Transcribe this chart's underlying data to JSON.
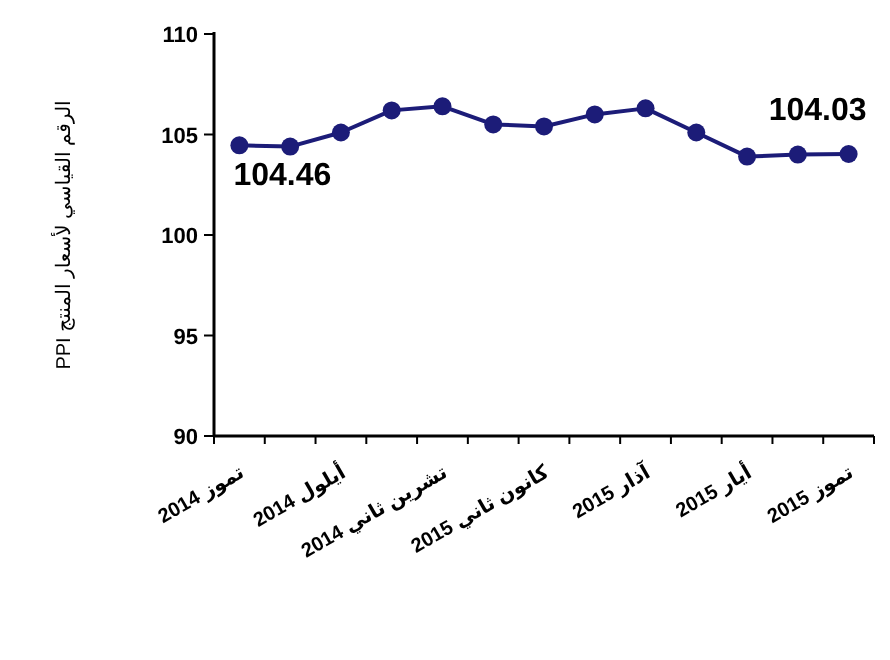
{
  "chart_data": {
    "type": "line",
    "ylabel": "الرقم القياسي لأسعار المنتج PPI",
    "categories": [
      "تموز 2014",
      null,
      "أيلول 2014",
      null,
      "تشرين ثاني 2014",
      null,
      "كانون ثاني 2015",
      null,
      "آذار 2015",
      null,
      "أيار 2015",
      null,
      "تموز 2015"
    ],
    "series": [
      {
        "color": "#1c1c78",
        "values": [
          104.46,
          104.4,
          105.1,
          106.2,
          106.4,
          105.5,
          105.4,
          106.0,
          106.3,
          105.1,
          103.9,
          104.0,
          104.03
        ],
        "value_labels": [
          "104.46",
          null,
          null,
          null,
          null,
          null,
          null,
          null,
          null,
          null,
          null,
          null,
          "104.03"
        ]
      }
    ],
    "ylim": [
      90,
      110
    ],
    "yticks": [
      90,
      95,
      100,
      105,
      110
    ],
    "marker": "circle",
    "line_style": "solid"
  }
}
